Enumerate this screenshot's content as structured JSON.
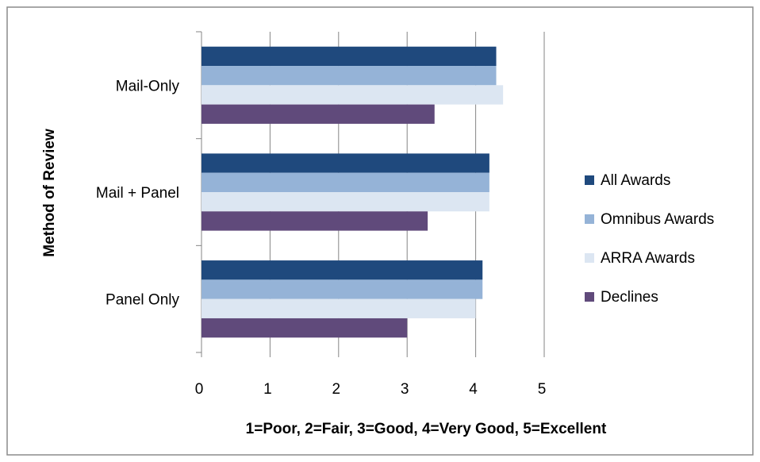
{
  "chart_data": {
    "type": "hbar",
    "y_label": "Method of Review",
    "x_label": "1=Poor, 2=Fair, 3=Good, 4=Very Good, 5=Excellent",
    "categories": [
      "Mail-Only",
      "Mail + Panel",
      "Panel Only"
    ],
    "series": [
      {
        "name": "All Awards",
        "color": "#1F497D",
        "values": [
          4.3,
          4.2,
          4.1
        ]
      },
      {
        "name": "Omnibus Awards",
        "color": "#95B3D7",
        "values": [
          4.3,
          4.2,
          4.1
        ]
      },
      {
        "name": "ARRA Awards",
        "color": "#DCE6F2",
        "values": [
          4.4,
          4.2,
          4.0
        ]
      },
      {
        "name": "Declines",
        "color": "#604A7B",
        "values": [
          3.4,
          3.3,
          3.0
        ]
      }
    ],
    "xlim": [
      0,
      5
    ],
    "xticks": [
      0,
      1,
      2,
      3,
      4,
      5
    ],
    "grid": true,
    "legend": "right"
  }
}
